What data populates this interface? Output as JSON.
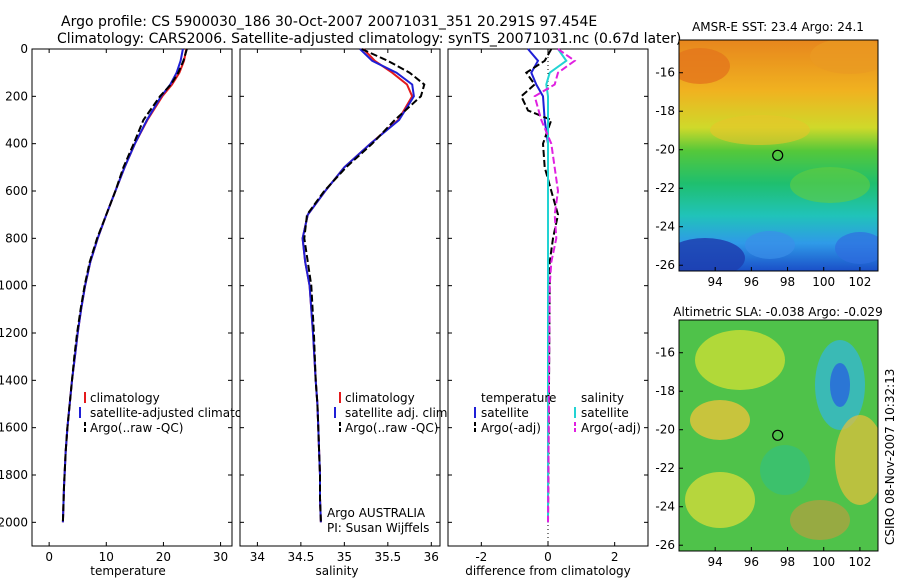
{
  "figure": {
    "title_line1": "Argo profile: CS 5900030_186 30-Oct-2007 20071031_351 20.291S 97.454E",
    "title_line2": "Climatology: CARS2006. Satellite-adjusted climatology: synTS_20071031.nc (0.67d later)",
    "side_stamp": "CSIRO 08-Nov-2007 10:32:13"
  },
  "colors": {
    "climatology": "#e41a1c",
    "satellite": "#1f1fd6",
    "argo": "#000000",
    "sal_satellite": "#22d3d3",
    "sal_argo": "#e020e0"
  },
  "chart_data": [
    {
      "type": "line",
      "id": "temperature",
      "xlabel": "temperature",
      "ylabel": "",
      "xlim": [
        -3,
        32
      ],
      "ylim": [
        0,
        2100
      ],
      "y_reversed": true,
      "xticks": [
        0,
        10,
        20,
        30
      ],
      "yticks": [
        0,
        200,
        400,
        600,
        800,
        1000,
        1200,
        1400,
        1600,
        1800,
        2000
      ],
      "legend": [
        "climatology",
        "satellite-adjusted climatology",
        "Argo(..raw -QC)"
      ],
      "series": [
        {
          "name": "climatology",
          "style": "solid",
          "color_key": "climatology",
          "x": [
            24.0,
            23.6,
            22.8,
            21.5,
            19.8,
            17.2,
            15.0,
            13.2,
            11.6,
            10.0,
            8.5,
            7.2,
            6.3,
            5.6,
            5.0,
            4.5,
            4.0,
            3.6,
            3.2,
            2.9,
            2.6,
            2.4
          ],
          "y": [
            0,
            50,
            100,
            150,
            200,
            300,
            400,
            500,
            600,
            700,
            800,
            900,
            1000,
            1100,
            1200,
            1300,
            1400,
            1500,
            1600,
            1700,
            1850,
            2000
          ]
        },
        {
          "name": "satellite-adjusted climatology",
          "style": "solid",
          "color_key": "satellite",
          "x": [
            23.4,
            23.0,
            22.3,
            21.2,
            19.6,
            17.1,
            15.0,
            13.2,
            11.6,
            10.0,
            8.5,
            7.2,
            6.3,
            5.6,
            5.0,
            4.5,
            4.0,
            3.6,
            3.2,
            2.9,
            2.6,
            2.4
          ],
          "y": [
            0,
            50,
            100,
            150,
            200,
            300,
            400,
            500,
            600,
            700,
            800,
            900,
            1000,
            1100,
            1200,
            1300,
            1400,
            1500,
            1600,
            1700,
            1850,
            2000
          ]
        },
        {
          "name": "Argo(..raw -QC)",
          "style": "dashed",
          "color_key": "argo",
          "x": [
            24.1,
            23.5,
            22.6,
            21.3,
            19.4,
            16.5,
            14.8,
            13.0,
            11.6,
            10.0,
            8.4,
            7.1,
            6.2,
            5.5,
            4.9,
            4.4,
            4.0,
            3.6,
            3.2,
            2.9,
            2.6,
            2.4
          ],
          "y": [
            0,
            50,
            100,
            150,
            200,
            300,
            400,
            500,
            600,
            700,
            800,
            900,
            1000,
            1100,
            1200,
            1300,
            1400,
            1500,
            1600,
            1700,
            1850,
            2000
          ]
        }
      ]
    },
    {
      "type": "line",
      "id": "salinity",
      "xlabel": "salinity",
      "ylabel": "",
      "xlim": [
        33.8,
        36.1
      ],
      "ylim": [
        0,
        2100
      ],
      "y_reversed": true,
      "xticks": [
        34,
        34.5,
        35,
        35.5,
        36
      ],
      "yticks": [
        0,
        200,
        400,
        600,
        800,
        1000,
        1200,
        1400,
        1600,
        1800,
        2000
      ],
      "legend": [
        "climatology",
        "satellite adj. clim.",
        "Argo(..raw -QC)"
      ],
      "annotations": [
        "Argo AUSTRALIA",
        "PI: Susan Wijffels"
      ],
      "series": [
        {
          "name": "climatology",
          "style": "solid",
          "color_key": "climatology",
          "x": [
            35.22,
            35.35,
            35.55,
            35.72,
            35.78,
            35.62,
            35.3,
            35.0,
            34.78,
            34.58,
            34.52,
            34.55,
            34.6,
            34.64,
            34.67,
            34.69,
            34.7,
            34.71,
            34.72,
            34.72,
            34.73
          ],
          "y": [
            0,
            50,
            100,
            150,
            200,
            300,
            400,
            500,
            600,
            700,
            800,
            900,
            1000,
            1200,
            1400,
            1500,
            1600,
            1700,
            1800,
            1900,
            2000
          ]
        },
        {
          "name": "satellite adj. clim.",
          "style": "solid",
          "color_key": "satellite",
          "x": [
            35.18,
            35.32,
            35.6,
            35.78,
            35.8,
            35.63,
            35.3,
            35.0,
            34.78,
            34.58,
            34.52,
            34.55,
            34.6,
            34.64,
            34.67,
            34.69,
            34.7,
            34.71,
            34.72,
            34.72,
            34.73
          ],
          "y": [
            0,
            50,
            100,
            150,
            200,
            300,
            400,
            500,
            600,
            700,
            800,
            900,
            1000,
            1200,
            1400,
            1500,
            1600,
            1700,
            1800,
            1900,
            2000
          ]
        },
        {
          "name": "Argo(..raw -QC)",
          "style": "dashed",
          "color_key": "argo",
          "x": [
            35.2,
            35.5,
            35.75,
            35.92,
            35.88,
            35.58,
            35.32,
            35.02,
            34.77,
            34.57,
            34.54,
            34.58,
            34.62,
            34.65,
            34.67,
            34.69,
            34.7,
            34.71,
            34.72,
            34.72,
            34.73
          ],
          "y": [
            0,
            50,
            100,
            150,
            200,
            300,
            400,
            500,
            600,
            700,
            800,
            900,
            1000,
            1200,
            1400,
            1500,
            1600,
            1700,
            1800,
            1900,
            2000
          ]
        }
      ]
    },
    {
      "type": "line",
      "id": "difference",
      "xlabel": "difference from climatology",
      "ylabel": "",
      "xlim": [
        -3,
        3
      ],
      "ylim": [
        0,
        2100
      ],
      "y_reversed": true,
      "xticks": [
        -2,
        0,
        2
      ],
      "yticks": [
        0,
        200,
        400,
        600,
        800,
        1000,
        1200,
        1400,
        1600,
        1800,
        2000
      ],
      "legend_groups": [
        {
          "header": "temperature",
          "items": [
            "satellite",
            "Argo(-adj)"
          ]
        },
        {
          "header": "salinity",
          "items": [
            "satellite",
            "Argo(-adj)"
          ]
        }
      ],
      "series": [
        {
          "name": "temperature satellite",
          "style": "solid",
          "color_key": "satellite",
          "x": [
            -0.6,
            -0.3,
            -0.5,
            -0.35,
            -0.15,
            -0.1,
            0,
            0,
            0,
            0
          ],
          "y": [
            0,
            50,
            100,
            150,
            200,
            300,
            400,
            600,
            1000,
            2000
          ]
        },
        {
          "name": "temperature Argo(-adj)",
          "style": "dashed",
          "color_key": "argo",
          "x": [
            0.1,
            -0.1,
            -0.65,
            -0.4,
            -0.8,
            -0.6,
            0.1,
            -0.15,
            -0.1,
            0.1,
            0.3,
            0.15,
            0.05,
            0.05,
            0
          ],
          "y": [
            0,
            50,
            100,
            150,
            200,
            260,
            300,
            400,
            500,
            600,
            700,
            800,
            900,
            1000,
            2000
          ]
        },
        {
          "name": "salinity satellite",
          "style": "solid",
          "color_key": "sal_satellite",
          "x": [
            0.3,
            0.55,
            0.05,
            -0.05,
            0,
            0,
            0,
            0
          ],
          "y": [
            0,
            50,
            100,
            150,
            200,
            300,
            600,
            2000
          ]
        },
        {
          "name": "salinity Argo(-adj)",
          "style": "dashed",
          "color_key": "sal_argo",
          "x": [
            0.3,
            0.8,
            0.3,
            0.2,
            -0.4,
            -0.2,
            0.1,
            0.3,
            0.2,
            0.25,
            0.1,
            0.05,
            0
          ],
          "y": [
            0,
            50,
            100,
            150,
            200,
            300,
            400,
            600,
            700,
            800,
            900,
            1000,
            2000
          ]
        }
      ]
    },
    {
      "type": "heatmap",
      "id": "sst_map",
      "title": "AMSR-E SST: 23.4  Argo: 24.1",
      "xlim": [
        92,
        103
      ],
      "ylim": [
        -26.3,
        -14.3
      ],
      "xticks": [
        94,
        96,
        98,
        100,
        102
      ],
      "yticks": [
        -16,
        -18,
        -20,
        -22,
        -24,
        -26
      ],
      "marker": {
        "lon": 97.454,
        "lat": -20.291
      },
      "palette": "warm-top to cool-bottom"
    },
    {
      "type": "heatmap",
      "id": "sla_map",
      "title": "Altimetric SLA: -0.038  Argo: -0.029",
      "xlim": [
        92,
        103
      ],
      "ylim": [
        -26.3,
        -14.3
      ],
      "xticks": [
        94,
        96,
        98,
        100,
        102
      ],
      "yticks": [
        -16,
        -18,
        -20,
        -22,
        -24,
        -26
      ],
      "marker": {
        "lon": 97.454,
        "lat": -20.291
      },
      "palette": "green-yellow with blue/orange eddies"
    }
  ]
}
